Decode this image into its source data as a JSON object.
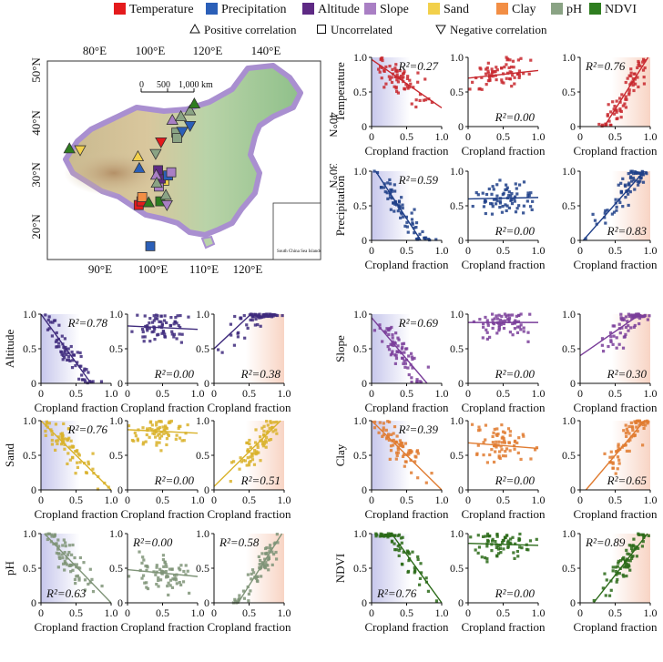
{
  "legend": {
    "items": [
      {
        "label": "Temperature",
        "color": "#e41a1c"
      },
      {
        "label": "Precipitation",
        "color": "#2b5fb8"
      },
      {
        "label": "Altitude",
        "color": "#5e2a84"
      },
      {
        "label": "Slope",
        "color": "#a97fc4"
      },
      {
        "label": "Sand",
        "color": "#f2d04b"
      },
      {
        "label": "Clay",
        "color": "#f28e45"
      },
      {
        "label": "pH",
        "color": "#8aa384"
      },
      {
        "label": "NDVI",
        "color": "#2e7d1f"
      }
    ],
    "correlations": [
      {
        "label": "Positive correlation",
        "icon": "triangle-up-icon"
      },
      {
        "label": "Uncorrelated",
        "icon": "square-icon"
      },
      {
        "label": "Negative correlation",
        "icon": "triangle-down-icon"
      }
    ]
  },
  "map": {
    "top_lon_labels": [
      "80°E",
      "100°E",
      "120°E",
      "140°E"
    ],
    "bottom_lon_labels": [
      "90°E",
      "100°E",
      "110°E",
      "120°E"
    ],
    "left_lat_labels": [
      "50°N",
      "40°N",
      "30°N",
      "20°N"
    ],
    "right_lat_labels": [
      "40°N",
      "30°N"
    ],
    "scale_labels": [
      "0",
      "500",
      "1,000 km"
    ],
    "inset_label": "South China Sea Islands",
    "sites": [
      {
        "var": 7,
        "shape": "up",
        "lon": 80.5,
        "lat": 37.5
      },
      {
        "var": 4,
        "shape": "down",
        "lon": 84.5,
        "lat": 37.2
      },
      {
        "var": 4,
        "shape": "up",
        "lon": 106.0,
        "lat": 36.0
      },
      {
        "var": 1,
        "shape": "up",
        "lon": 106.5,
        "lat": 33.8
      },
      {
        "var": 0,
        "shape": "down",
        "lon": 114.6,
        "lat": 38.7
      },
      {
        "var": 6,
        "shape": "down",
        "lon": 112.6,
        "lat": 36.5
      },
      {
        "var": 0,
        "shape": "sq",
        "lon": 106.3,
        "lat": 26.8
      },
      {
        "var": 0,
        "shape": "sq",
        "lon": 107.3,
        "lat": 27.5
      },
      {
        "var": 5,
        "shape": "sq",
        "lon": 107.6,
        "lat": 28.3
      },
      {
        "var": 7,
        "shape": "up",
        "lon": 110.0,
        "lat": 27.3
      },
      {
        "var": 1,
        "shape": "sq",
        "lon": 110.6,
        "lat": 19.0
      },
      {
        "var": 4,
        "shape": "sq",
        "lon": 115.8,
        "lat": 31.4
      },
      {
        "var": 3,
        "shape": "sq",
        "lon": 113.8,
        "lat": 30.3
      },
      {
        "var": 2,
        "shape": "sq",
        "lon": 114.5,
        "lat": 31.8
      },
      {
        "var": 2,
        "shape": "sq",
        "lon": 113.5,
        "lat": 33.4
      },
      {
        "var": 3,
        "shape": "up",
        "lon": 112.8,
        "lat": 32.5
      },
      {
        "var": 6,
        "shape": "up",
        "lon": 113.0,
        "lat": 31.0
      },
      {
        "var": 7,
        "shape": "sq",
        "lon": 114.3,
        "lat": 27.5
      },
      {
        "var": 6,
        "shape": "up",
        "lon": 116.4,
        "lat": 28.7
      },
      {
        "var": 3,
        "shape": "down",
        "lon": 116.8,
        "lat": 26.8
      },
      {
        "var": 1,
        "shape": "sq",
        "lon": 117.2,
        "lat": 32.4
      },
      {
        "var": 3,
        "shape": "sq",
        "lon": 118.4,
        "lat": 33.0
      },
      {
        "var": 3,
        "shape": "up",
        "lon": 118.8,
        "lat": 42.9
      },
      {
        "var": 6,
        "shape": "up",
        "lon": 122.0,
        "lat": 43.6
      },
      {
        "var": 6,
        "shape": "up",
        "lon": 125.4,
        "lat": 44.7
      },
      {
        "var": 6,
        "shape": "sq",
        "lon": 120.3,
        "lat": 40.5
      },
      {
        "var": 6,
        "shape": "sq",
        "lon": 120.6,
        "lat": 39.5
      },
      {
        "var": 1,
        "shape": "down",
        "lon": 122.5,
        "lat": 40.7
      },
      {
        "var": 7,
        "shape": "up",
        "lon": 127.0,
        "lat": 46.0
      },
      {
        "var": 1,
        "shape": "down",
        "lon": 125.4,
        "lat": 41.8
      }
    ]
  },
  "chart_data": {
    "type": "scatter",
    "xlabel": "Cropland fraction",
    "xlim": [
      0,
      1
    ],
    "ylim": [
      0,
      1
    ],
    "xticks": [
      "0",
      "0.5",
      "1.0"
    ],
    "yticks": [
      "0",
      "0.5",
      "1.0"
    ],
    "r2_prefix": "R²=",
    "variables": [
      {
        "name": "Temperature",
        "ylabel": "Temperature",
        "color": "#c8282e",
        "panels": [
          {
            "slope": -0.7,
            "intercept": 0.97,
            "r2": "0.27",
            "r2_pos": "top"
          },
          {
            "slope": 0.11,
            "intercept": 0.7,
            "r2": "0.00",
            "r2_pos": "bottom"
          },
          {
            "slope": 1.6,
            "intercept": -0.55,
            "r2": "0.76",
            "r2_pos": "top"
          }
        ]
      },
      {
        "name": "Precipitation",
        "ylabel": "Precipitation",
        "color": "#1f3f88",
        "panels": [
          {
            "slope": -1.55,
            "intercept": 1.09,
            "r2": "0.59",
            "r2_pos": "top"
          },
          {
            "slope": 0.02,
            "intercept": 0.6,
            "r2": "0.00",
            "r2_pos": "bottom"
          },
          {
            "slope": 1.15,
            "intercept": -0.05,
            "r2": "0.83",
            "r2_pos": "bottom"
          }
        ]
      },
      {
        "name": "Altitude",
        "ylabel": "Altitude",
        "color": "#3e2a7c",
        "panels": [
          {
            "slope": -1.4,
            "intercept": 1.0,
            "r2": "0.78",
            "r2_pos": "top"
          },
          {
            "slope": -0.05,
            "intercept": 0.83,
            "r2": "0.00",
            "r2_pos": "bottom"
          },
          {
            "slope": 0.95,
            "intercept": 0.5,
            "r2": "0.38",
            "r2_pos": "bottom"
          }
        ]
      },
      {
        "name": "Slope",
        "ylabel": "Slope",
        "color": "#7a3e9a",
        "panels": [
          {
            "slope": -1.2,
            "intercept": 0.95,
            "r2": "0.69",
            "r2_pos": "top"
          },
          {
            "slope": 0.0,
            "intercept": 0.88,
            "r2": "0.00",
            "r2_pos": "bottom"
          },
          {
            "slope": 0.7,
            "intercept": 0.4,
            "r2": "0.30",
            "r2_pos": "bottom"
          }
        ]
      },
      {
        "name": "Sand",
        "ylabel": "Sand",
        "color": "#d9b22a",
        "panels": [
          {
            "slope": -1.0,
            "intercept": 1.0,
            "r2": "0.76",
            "r2_pos": "top"
          },
          {
            "slope": -0.05,
            "intercept": 0.87,
            "r2": "0.00",
            "r2_pos": "bottom"
          },
          {
            "slope": 1.0,
            "intercept": 0.05,
            "r2": "0.51",
            "r2_pos": "bottom"
          }
        ]
      },
      {
        "name": "Clay",
        "ylabel": "Clay",
        "color": "#e07b30",
        "panels": [
          {
            "slope": -1.0,
            "intercept": 1.0,
            "r2": "0.39",
            "r2_pos": "top"
          },
          {
            "slope": -0.08,
            "intercept": 0.68,
            "r2": "0.00",
            "r2_pos": "bottom"
          },
          {
            "slope": 1.2,
            "intercept": -0.1,
            "r2": "0.65",
            "r2_pos": "bottom"
          }
        ]
      },
      {
        "name": "pH",
        "ylabel": "pH",
        "color": "#7f9478",
        "panels": [
          {
            "slope": -1.05,
            "intercept": 1.05,
            "r2": "0.63",
            "r2_pos": "bottom"
          },
          {
            "slope": -0.1,
            "intercept": 0.48,
            "r2": "0.00",
            "r2_pos": "top"
          },
          {
            "slope": 1.6,
            "intercept": -0.55,
            "r2": "0.58",
            "r2_pos": "top"
          }
        ]
      },
      {
        "name": "NDVI",
        "ylabel": "NDVI",
        "color": "#2a6a18",
        "panels": [
          {
            "slope": -1.4,
            "intercept": 1.4,
            "r2": "0.76",
            "r2_pos": "bottom"
          },
          {
            "slope": -0.03,
            "intercept": 0.86,
            "r2": "0.00",
            "r2_pos": "bottom"
          },
          {
            "slope": 1.3,
            "intercept": -0.25,
            "r2": "0.89",
            "r2_pos": "top"
          }
        ]
      }
    ]
  }
}
